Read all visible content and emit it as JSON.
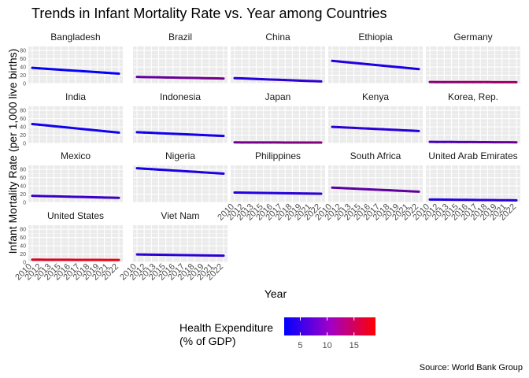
{
  "chart_data": {
    "type": "line",
    "title": "Trends in Infant Mortality Rate vs. Year among Countries",
    "xlabel": "Year",
    "ylabel": "Infant Mortality Rate (per 1,000 live births)",
    "caption": "Source: World Bank Group",
    "x_ticks": [
      "2010",
      "2012",
      "2013",
      "2015",
      "2016",
      "2017",
      "2018",
      "2019",
      "2021",
      "2022"
    ],
    "y_ticks": [
      0,
      20,
      40,
      60,
      80
    ],
    "x_range": [
      2010,
      2022
    ],
    "y_range": [
      0,
      90
    ],
    "color_legend": {
      "title_line1": "Health Expenditure",
      "title_line2": "(% of GDP)",
      "ticks": [
        5,
        10,
        15
      ],
      "range": [
        2,
        19
      ],
      "low_color": "#0000ff",
      "high_color": "#ff0000"
    },
    "panels": [
      {
        "country": "Bangladesh",
        "start": [
          2010,
          38
        ],
        "end": [
          2022,
          24
        ],
        "spend": [
          2.5,
          2.4
        ]
      },
      {
        "country": "Brazil",
        "start": [
          2010,
          16
        ],
        "end": [
          2022,
          12
        ],
        "spend": [
          8.5,
          9.8
        ]
      },
      {
        "country": "China",
        "start": [
          2010,
          13
        ],
        "end": [
          2022,
          5
        ],
        "spend": [
          4.3,
          5.4
        ]
      },
      {
        "country": "Ethiopia",
        "start": [
          2010,
          55
        ],
        "end": [
          2022,
          35
        ],
        "spend": [
          4.5,
          3.5
        ]
      },
      {
        "country": "Germany",
        "start": [
          2010,
          3.5
        ],
        "end": [
          2022,
          3.1
        ],
        "spend": [
          11,
          12.7
        ]
      },
      {
        "country": "India",
        "start": [
          2010,
          47
        ],
        "end": [
          2022,
          26
        ],
        "spend": [
          3.3,
          3.2
        ]
      },
      {
        "country": "Indonesia",
        "start": [
          2010,
          27
        ],
        "end": [
          2022,
          18
        ],
        "spend": [
          2.9,
          3.4
        ]
      },
      {
        "country": "Japan",
        "start": [
          2010,
          2.3
        ],
        "end": [
          2022,
          1.8
        ],
        "spend": [
          9.5,
          11
        ]
      },
      {
        "country": "Kenya",
        "start": [
          2010,
          40
        ],
        "end": [
          2022,
          30
        ],
        "spend": [
          5.0,
          4.5
        ]
      },
      {
        "country": "Korea, Rep.",
        "start": [
          2010,
          3.5
        ],
        "end": [
          2022,
          2.5
        ],
        "spend": [
          6.2,
          9.5
        ]
      },
      {
        "country": "Mexico",
        "start": [
          2010,
          16
        ],
        "end": [
          2022,
          11
        ],
        "spend": [
          5.8,
          6.1
        ]
      },
      {
        "country": "Nigeria",
        "start": [
          2010,
          83
        ],
        "end": [
          2022,
          70
        ],
        "spend": [
          3.5,
          4.1
        ]
      },
      {
        "country": "Philippines",
        "start": [
          2010,
          24
        ],
        "end": [
          2022,
          21
        ],
        "spend": [
          4.0,
          5.0
        ]
      },
      {
        "country": "South Africa",
        "start": [
          2010,
          36
        ],
        "end": [
          2022,
          26
        ],
        "spend": [
          8.0,
          8.6
        ]
      },
      {
        "country": "United Arab Emirates",
        "start": [
          2010,
          7
        ],
        "end": [
          2022,
          5
        ],
        "spend": [
          4.0,
          5.0
        ]
      },
      {
        "country": "United States",
        "start": [
          2010,
          6.2
        ],
        "end": [
          2022,
          5.5
        ],
        "spend": [
          16.5,
          18
        ]
      },
      {
        "country": "Viet Nam",
        "start": [
          2010,
          19
        ],
        "end": [
          2022,
          16
        ],
        "spend": [
          5.0,
          4.8
        ]
      }
    ]
  }
}
